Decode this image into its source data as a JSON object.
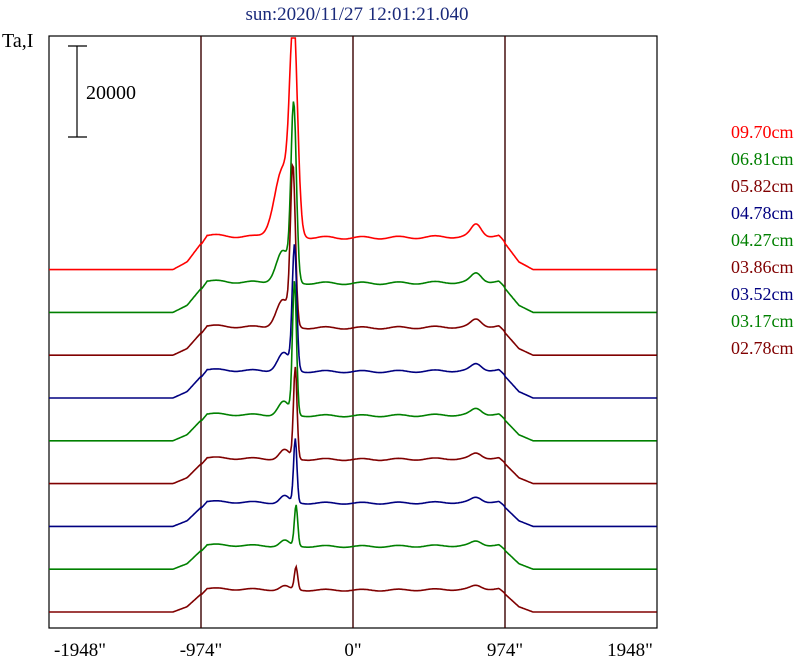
{
  "chart_data": {
    "type": "line",
    "title": "sun:2020/11/27 12:01:21.040",
    "ylabel": "Ta,I",
    "xlabel": "",
    "x_ticks": [
      -1948,
      -974,
      0,
      974,
      1948
    ],
    "x_tick_labels": [
      "-1948\"",
      "-974\"",
      "0\"",
      "974\"",
      "1948\""
    ],
    "xlim": [
      -1948,
      1948
    ],
    "vertical_lines": [
      -974,
      0,
      974
    ],
    "scale_bar": {
      "value": 20000,
      "label": "20000"
    },
    "grid": false,
    "legend_position": "right",
    "series": [
      {
        "name": "09.70cm",
        "color": "#ff0000",
        "baseline": 0,
        "disk": 7000,
        "peak_x": -380,
        "peak": 42500,
        "peak_w": 34,
        "shoulder_x": -450,
        "shoulder": 15000,
        "shoulder_w": 75,
        "right_bump_x": 790,
        "right_bump": 2500
      },
      {
        "name": "06.81cm",
        "color": "#008000",
        "baseline": 1,
        "disk": 6400,
        "peak_x": -380,
        "peak": 38000,
        "peak_w": 24,
        "shoulder_x": -450,
        "shoulder": 7000,
        "shoulder_w": 60,
        "right_bump_x": 790,
        "right_bump": 1800
      },
      {
        "name": "05.82cm",
        "color": "#800000",
        "baseline": 2,
        "disk": 6000,
        "peak_x": -385,
        "peak": 34000,
        "peak_w": 22,
        "shoulder_x": -450,
        "shoulder": 6000,
        "shoulder_w": 60,
        "right_bump_x": 790,
        "right_bump": 1500
      },
      {
        "name": "04.78cm",
        "color": "#000080",
        "baseline": 3,
        "disk": 5800,
        "peak_x": -375,
        "peak": 27000,
        "peak_w": 20,
        "shoulder_x": -445,
        "shoulder": 4000,
        "shoulder_w": 55,
        "right_bump_x": 790,
        "right_bump": 1300
      },
      {
        "name": "04.27cm",
        "color": "#008000",
        "baseline": 4,
        "disk": 5500,
        "peak_x": -375,
        "peak": 29000,
        "peak_w": 18,
        "shoulder_x": -445,
        "shoulder": 3000,
        "shoulder_w": 50,
        "right_bump_x": 790,
        "right_bump": 1200
      },
      {
        "name": "03.86cm",
        "color": "#800000",
        "baseline": 5,
        "disk": 5300,
        "peak_x": -370,
        "peak": 20000,
        "peak_w": 16,
        "shoulder_x": -440,
        "shoulder": 2000,
        "shoulder_w": 45,
        "right_bump_x": 790,
        "right_bump": 1000
      },
      {
        "name": "03.52cm",
        "color": "#000080",
        "baseline": 6,
        "disk": 5100,
        "peak_x": -370,
        "peak": 14000,
        "peak_w": 15,
        "shoulder_x": -440,
        "shoulder": 1500,
        "shoulder_w": 40,
        "right_bump_x": 790,
        "right_bump": 900
      },
      {
        "name": "03.17cm",
        "color": "#008000",
        "baseline": 7,
        "disk": 5000,
        "peak_x": -365,
        "peak": 9000,
        "peak_w": 15,
        "shoulder_x": -440,
        "shoulder": 1200,
        "shoulder_w": 40,
        "right_bump_x": 790,
        "right_bump": 800
      },
      {
        "name": "02.78cm",
        "color": "#800000",
        "baseline": 8,
        "disk": 4800,
        "peak_x": -365,
        "peak": 5000,
        "peak_w": 15,
        "shoulder_x": -440,
        "shoulder": 800,
        "shoulder_w": 40,
        "right_bump_x": 790,
        "right_bump": 700
      }
    ]
  }
}
